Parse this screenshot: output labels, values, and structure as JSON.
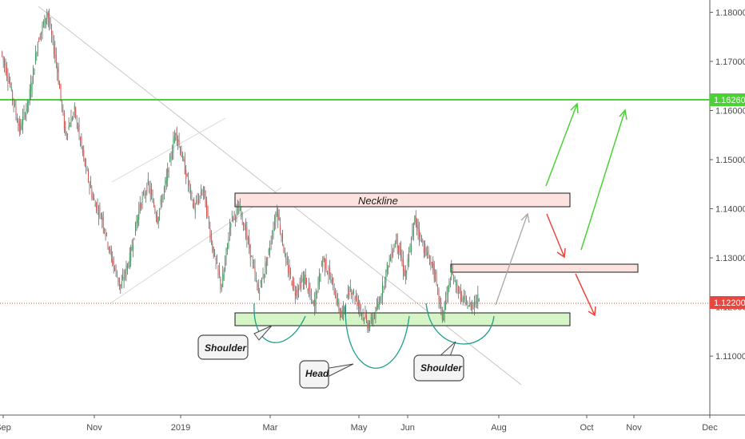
{
  "chart_data": {
    "type": "candlestick",
    "y_ticks": [
      "1.18000",
      "1.17000",
      "1.16000",
      "1.15000",
      "1.14000",
      "1.13000",
      "1.12000",
      "1.11000"
    ],
    "y_tick_values": [
      1.18,
      1.17,
      1.16,
      1.15,
      1.14,
      1.13,
      1.12,
      1.11
    ],
    "ylim": [
      1.098,
      1.1825
    ],
    "x_ticks": [
      "Sep",
      "Nov",
      "2019",
      "Mar",
      "May",
      "Jun",
      "Aug",
      "Oct",
      "Nov",
      "Dec"
    ],
    "price_markers": [
      {
        "label": "1.16260",
        "value": 1.1626,
        "color": "#4cd137"
      },
      {
        "label": "1.12200",
        "value": 1.122,
        "color": "#e8473f"
      }
    ],
    "series": [
      {
        "values": [
          [
            1.172,
            1.165
          ],
          [
            1.165,
            1.156
          ],
          [
            1.156,
            1.162
          ],
          [
            1.162,
            1.174
          ],
          [
            1.174,
            1.18
          ],
          [
            1.18,
            1.17
          ],
          [
            1.17,
            1.155
          ],
          [
            1.155,
            1.16
          ],
          [
            1.16,
            1.15
          ],
          [
            1.15,
            1.142
          ],
          [
            1.142,
            1.138
          ],
          [
            1.138,
            1.13
          ],
          [
            1.13,
            1.124
          ],
          [
            1.124,
            1.13
          ],
          [
            1.13,
            1.14
          ],
          [
            1.14,
            1.145
          ],
          [
            1.145,
            1.138
          ],
          [
            1.138,
            1.146
          ],
          [
            1.146,
            1.156
          ],
          [
            1.156,
            1.148
          ],
          [
            1.148,
            1.14
          ],
          [
            1.14,
            1.144
          ],
          [
            1.144,
            1.132
          ],
          [
            1.132,
            1.124
          ],
          [
            1.124,
            1.138
          ],
          [
            1.138,
            1.14
          ],
          [
            1.14,
            1.132
          ],
          [
            1.132,
            1.123
          ],
          [
            1.123,
            1.13
          ],
          [
            1.13,
            1.14
          ],
          [
            1.14,
            1.129
          ],
          [
            1.129,
            1.123
          ],
          [
            1.123,
            1.126
          ],
          [
            1.126,
            1.12
          ],
          [
            1.12,
            1.13
          ],
          [
            1.13,
            1.125
          ],
          [
            1.125,
            1.118
          ],
          [
            1.118,
            1.124
          ],
          [
            1.124,
            1.12
          ],
          [
            1.12,
            1.116
          ],
          [
            1.116,
            1.12
          ],
          [
            1.12,
            1.128
          ],
          [
            1.128,
            1.134
          ],
          [
            1.134,
            1.126
          ],
          [
            1.126,
            1.138
          ],
          [
            1.138,
            1.132
          ],
          [
            1.132,
            1.128
          ],
          [
            1.128,
            1.118
          ],
          [
            1.118,
            1.127
          ],
          [
            1.127,
            1.122
          ],
          [
            1.122,
            1.12
          ],
          [
            1.12,
            1.122
          ]
        ]
      }
    ],
    "annotations": {
      "neckline": "Neckline",
      "shoulder_left": "Shoulder",
      "head": "Head",
      "shoulder_right": "Shoulder"
    },
    "zones": [
      {
        "name": "neckline",
        "y_top": 1.144,
        "y_bottom": 1.1415,
        "color": "#fde3df"
      },
      {
        "name": "resistance",
        "y_top": 1.1295,
        "y_bottom": 1.128,
        "color": "#fde3df"
      },
      {
        "name": "support",
        "y_top": 1.12,
        "y_bottom": 1.1175,
        "color": "#d6f5c6"
      }
    ]
  }
}
